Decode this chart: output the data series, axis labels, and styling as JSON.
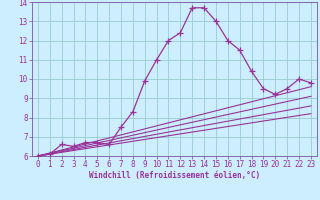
{
  "xlabel": "Windchill (Refroidissement éolien,°C)",
  "bg_color": "#cceeff",
  "line_color": "#993399",
  "spine_color": "#7755aa",
  "xlim": [
    -0.5,
    23.5
  ],
  "ylim": [
    6,
    14
  ],
  "xticks": [
    0,
    1,
    2,
    3,
    4,
    5,
    6,
    7,
    8,
    9,
    10,
    11,
    12,
    13,
    14,
    15,
    16,
    17,
    18,
    19,
    20,
    21,
    22,
    23
  ],
  "yticks": [
    6,
    7,
    8,
    9,
    10,
    11,
    12,
    13,
    14
  ],
  "grid_color": "#99cccc",
  "series": [
    [
      0,
      6.0
    ],
    [
      1,
      6.1
    ],
    [
      2,
      6.6
    ],
    [
      3,
      6.5
    ],
    [
      4,
      6.7
    ],
    [
      5,
      6.7
    ],
    [
      6,
      6.6
    ],
    [
      7,
      7.5
    ],
    [
      8,
      8.3
    ],
    [
      9,
      9.9
    ],
    [
      10,
      11.0
    ],
    [
      11,
      12.0
    ],
    [
      12,
      12.4
    ],
    [
      13,
      13.7
    ],
    [
      14,
      13.7
    ],
    [
      15,
      13.0
    ],
    [
      16,
      12.0
    ],
    [
      17,
      11.5
    ],
    [
      18,
      10.4
    ],
    [
      19,
      9.5
    ],
    [
      20,
      9.2
    ],
    [
      21,
      9.5
    ],
    [
      22,
      10.0
    ],
    [
      23,
      9.8
    ]
  ],
  "linear_series": [
    [
      [
        0,
        23
      ],
      [
        6.0,
        9.6
      ]
    ],
    [
      [
        0,
        23
      ],
      [
        6.0,
        9.1
      ]
    ],
    [
      [
        0,
        23
      ],
      [
        6.0,
        8.6
      ]
    ],
    [
      [
        0,
        23
      ],
      [
        6.0,
        8.2
      ]
    ]
  ],
  "tick_fontsize": 5.5,
  "xlabel_fontsize": 5.5
}
